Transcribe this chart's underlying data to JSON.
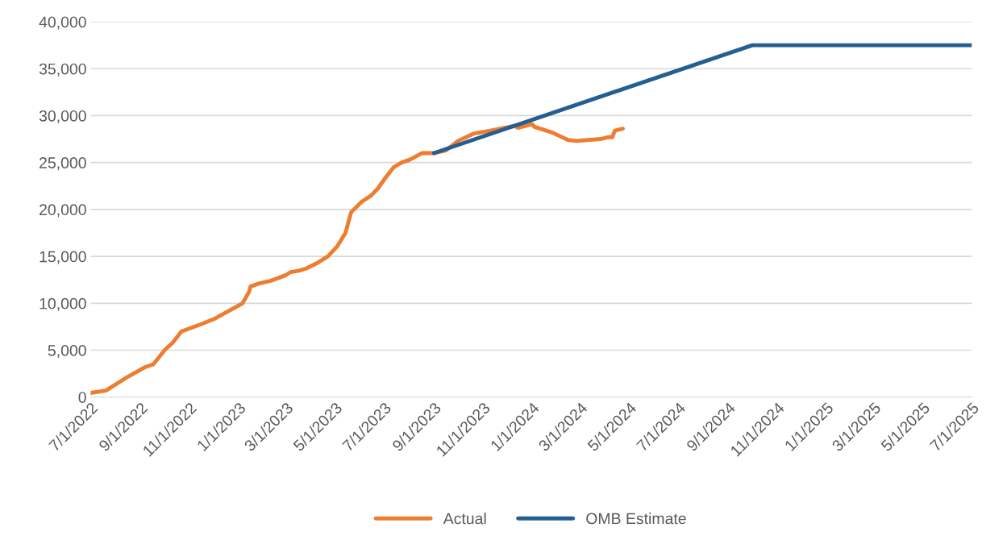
{
  "chart_data": {
    "type": "line",
    "xlim": [
      "2022-07-01",
      "2025-07-01"
    ],
    "xticks": [
      {
        "value": "2022-07-01",
        "label": "7/1/2022"
      },
      {
        "value": "2022-09-01",
        "label": "9/1/2022"
      },
      {
        "value": "2022-11-01",
        "label": "11/1/2022"
      },
      {
        "value": "2023-01-01",
        "label": "1/1/2023"
      },
      {
        "value": "2023-03-01",
        "label": "3/1/2023"
      },
      {
        "value": "2023-05-01",
        "label": "5/1/2023"
      },
      {
        "value": "2023-07-01",
        "label": "7/1/2023"
      },
      {
        "value": "2023-09-01",
        "label": "9/1/2023"
      },
      {
        "value": "2023-11-01",
        "label": "11/1/2023"
      },
      {
        "value": "2024-01-01",
        "label": "1/1/2024"
      },
      {
        "value": "2024-03-01",
        "label": "3/1/2024"
      },
      {
        "value": "2024-05-01",
        "label": "5/1/2024"
      },
      {
        "value": "2024-07-01",
        "label": "7/1/2024"
      },
      {
        "value": "2024-09-01",
        "label": "9/1/2024"
      },
      {
        "value": "2024-11-01",
        "label": "11/1/2024"
      },
      {
        "value": "2025-01-01",
        "label": "1/1/2025"
      },
      {
        "value": "2025-03-01",
        "label": "3/1/2025"
      },
      {
        "value": "2025-05-01",
        "label": "5/1/2025"
      },
      {
        "value": "2025-07-01",
        "label": "7/1/2025"
      }
    ],
    "ylim": [
      0,
      40000
    ],
    "yticks": [
      {
        "value": 0,
        "label": "0"
      },
      {
        "value": 5000,
        "label": "5,000"
      },
      {
        "value": 10000,
        "label": "10,000"
      },
      {
        "value": 15000,
        "label": "15,000"
      },
      {
        "value": 20000,
        "label": "20,000"
      },
      {
        "value": 25000,
        "label": "25,000"
      },
      {
        "value": 30000,
        "label": "30,000"
      },
      {
        "value": 35000,
        "label": "35,000"
      },
      {
        "value": 40000,
        "label": "40,000"
      }
    ],
    "grid": "y",
    "legend": "bottom",
    "marker": "none",
    "line_style": "solid",
    "series": [
      {
        "name": "Actual",
        "color": "#ed7d31",
        "x": [
          "2022-07-01",
          "2022-07-20",
          "2022-08-13",
          "2022-09-07",
          "2022-09-17",
          "2022-10-01",
          "2022-10-11",
          "2022-10-22",
          "2022-11-16",
          "2022-12-01",
          "2023-01-06",
          "2023-01-14",
          "2023-01-16",
          "2023-01-26",
          "2023-02-10",
          "2023-03-01",
          "2023-03-06",
          "2023-03-18",
          "2023-03-26",
          "2023-04-09",
          "2023-04-22",
          "2023-05-04",
          "2023-05-14",
          "2023-05-21",
          "2023-06-03",
          "2023-06-15",
          "2023-06-23",
          "2023-07-03",
          "2023-07-13",
          "2023-07-23",
          "2023-08-02",
          "2023-08-17",
          "2023-09-01",
          "2023-09-16",
          "2023-10-01",
          "2023-10-21",
          "2023-11-10",
          "2023-12-10",
          "2023-12-15",
          "2024-01-01",
          "2024-01-04",
          "2024-01-26",
          "2024-02-15",
          "2024-02-25",
          "2024-03-26",
          "2024-04-05",
          "2024-04-10",
          "2024-04-13",
          "2024-04-23"
        ],
        "values": [
          450,
          700,
          2000,
          3200,
          3500,
          5000,
          5800,
          7000,
          7800,
          8300,
          10000,
          11200,
          11800,
          12100,
          12400,
          13000,
          13300,
          13500,
          13700,
          14300,
          15000,
          16100,
          17500,
          19700,
          20800,
          21500,
          22200,
          23400,
          24500,
          25000,
          25300,
          26000,
          26000,
          26300,
          27300,
          28100,
          28400,
          28900,
          28700,
          29100,
          28800,
          28200,
          27400,
          27300,
          27500,
          27700,
          27700,
          28400,
          28600
        ]
      },
      {
        "name": "OMB Estimate",
        "color": "#255e91",
        "x": [
          "2023-09-01",
          "2024-10-01",
          "2025-07-01"
        ],
        "values": [
          26000,
          37500,
          37500
        ]
      }
    ]
  }
}
